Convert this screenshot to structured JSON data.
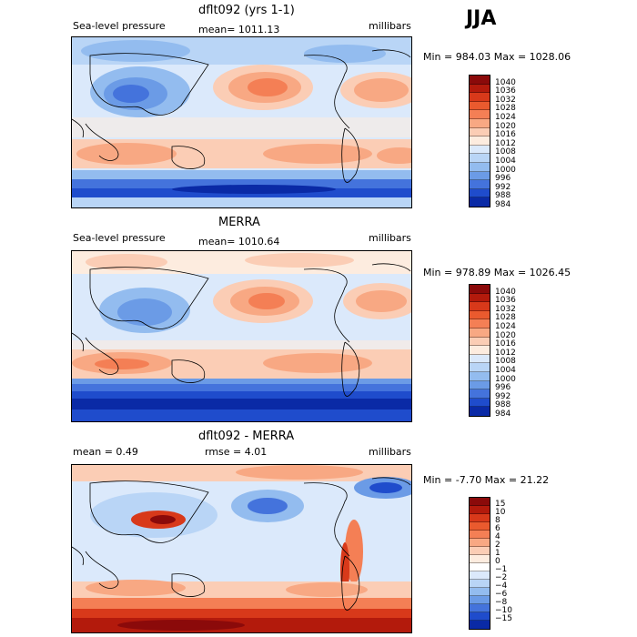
{
  "season": "JJA",
  "panels": [
    {
      "title": "dflt092 (yrs 1-1)",
      "field_label": "Sea-level pressure",
      "stat1": "mean= 1011.13",
      "stat2": "",
      "units": "millibars",
      "minmax": "Min = 984.03 Max = 1028.06",
      "colorbar_labels": [
        "1040",
        "1036",
        "1032",
        "1028",
        "1024",
        "1020",
        "1016",
        "1012",
        "1008",
        "1004",
        "1000",
        "996",
        "992",
        "988",
        "984"
      ],
      "colorbar_colors": [
        "#8b0a0a",
        "#b31a0c",
        "#d8391a",
        "#ea5a2e",
        "#f47f55",
        "#f8a883",
        "#fbcdb5",
        "#fdecdf",
        "#dbe9fb",
        "#b9d5f6",
        "#93bcef",
        "#6b9be6",
        "#4473dc",
        "#1f4ccc",
        "#0a2aa6"
      ]
    },
    {
      "title": "MERRA",
      "field_label": "Sea-level pressure",
      "stat1": "mean= 1010.64",
      "stat2": "",
      "units": "millibars",
      "minmax": "Min = 978.89 Max = 1026.45",
      "colorbar_labels": [
        "1040",
        "1036",
        "1032",
        "1028",
        "1024",
        "1020",
        "1016",
        "1012",
        "1008",
        "1004",
        "1000",
        "996",
        "992",
        "988",
        "984"
      ],
      "colorbar_colors": [
        "#8b0a0a",
        "#b31a0c",
        "#d8391a",
        "#ea5a2e",
        "#f47f55",
        "#f8a883",
        "#fbcdb5",
        "#fdecdf",
        "#dbe9fb",
        "#b9d5f6",
        "#93bcef",
        "#6b9be6",
        "#4473dc",
        "#1f4ccc",
        "#0a2aa6"
      ]
    },
    {
      "title": "dflt092 - MERRA",
      "field_label": "mean = 0.49",
      "stat1": "rmse = 4.01",
      "stat2": "",
      "units": "millibars",
      "minmax": "Min = -7.70 Max = 21.22",
      "colorbar_labels": [
        "15",
        "10",
        "8",
        "6",
        "4",
        "2",
        "1",
        "0",
        "−1",
        "−2",
        "−4",
        "−6",
        "−8",
        "−10",
        "−15"
      ],
      "colorbar_colors": [
        "#8b0a0a",
        "#b31a0c",
        "#d8391a",
        "#ea5a2e",
        "#f47f55",
        "#f8a883",
        "#fbcdb5",
        "#fdecdf",
        "#ffffff",
        "#dbe9fb",
        "#b9d5f6",
        "#93bcef",
        "#6b9be6",
        "#4473dc",
        "#1f4ccc",
        "#0a2aa6"
      ]
    }
  ]
}
